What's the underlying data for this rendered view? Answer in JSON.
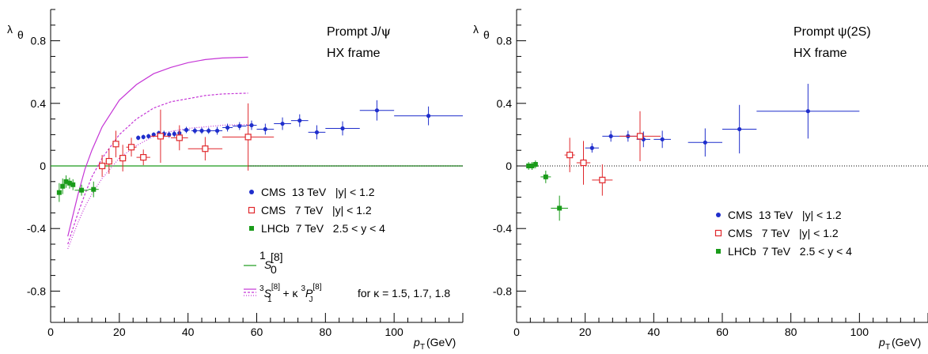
{
  "chart_data": [
    {
      "type": "scatter",
      "title_line1": "Prompt J/ψ",
      "title_line2": "HX frame",
      "ylabel": "λ",
      "ylabel_sub": "θ",
      "xlabel": "p",
      "xlabel_sub": "T",
      "xlabel_unit": "(GeV)",
      "xlim": [
        0,
        120
      ],
      "ylim": [
        -1.0,
        1.0
      ],
      "xticks": [
        "0",
        "20",
        "40",
        "60",
        "80",
        "100"
      ],
      "yticks": [
        "-0.8",
        "-0.4",
        "0",
        "0.4",
        "0.8"
      ],
      "series": [
        {
          "name": "CMS  13 TeV   |y| < 1.2",
          "color": "#1f2ecc",
          "marker": "filled-circle",
          "points": [
            {
              "x": 25.5,
              "y": 0.18,
              "xerr": 0.5,
              "yerr": 0.015
            },
            {
              "x": 27,
              "y": 0.185,
              "xerr": 0.5,
              "yerr": 0.015
            },
            {
              "x": 28.5,
              "y": 0.19,
              "xerr": 0.5,
              "yerr": 0.015
            },
            {
              "x": 30,
              "y": 0.2,
              "xerr": 0.5,
              "yerr": 0.015
            },
            {
              "x": 31.5,
              "y": 0.21,
              "xerr": 0.5,
              "yerr": 0.015
            },
            {
              "x": 33,
              "y": 0.205,
              "xerr": 0.5,
              "yerr": 0.02
            },
            {
              "x": 34.5,
              "y": 0.2,
              "xerr": 0.5,
              "yerr": 0.02
            },
            {
              "x": 36,
              "y": 0.205,
              "xerr": 0.5,
              "yerr": 0.02
            },
            {
              "x": 37.5,
              "y": 0.21,
              "xerr": 0.5,
              "yerr": 0.02
            },
            {
              "x": 39.5,
              "y": 0.23,
              "xerr": 1.0,
              "yerr": 0.02
            },
            {
              "x": 42,
              "y": 0.225,
              "xerr": 1.0,
              "yerr": 0.02
            },
            {
              "x": 44,
              "y": 0.225,
              "xerr": 1.0,
              "yerr": 0.02
            },
            {
              "x": 46,
              "y": 0.225,
              "xerr": 1.0,
              "yerr": 0.02
            },
            {
              "x": 48.5,
              "y": 0.225,
              "xerr": 1.5,
              "yerr": 0.025
            },
            {
              "x": 51.5,
              "y": 0.245,
              "xerr": 1.5,
              "yerr": 0.025
            },
            {
              "x": 55,
              "y": 0.255,
              "xerr": 2.0,
              "yerr": 0.025
            },
            {
              "x": 58.5,
              "y": 0.26,
              "xerr": 1.5,
              "yerr": 0.03
            },
            {
              "x": 62.5,
              "y": 0.235,
              "xerr": 2.5,
              "yerr": 0.035
            },
            {
              "x": 67.5,
              "y": 0.27,
              "xerr": 2.5,
              "yerr": 0.04
            },
            {
              "x": 72.5,
              "y": 0.29,
              "xerr": 2.5,
              "yerr": 0.04
            },
            {
              "x": 77.5,
              "y": 0.215,
              "xerr": 2.5,
              "yerr": 0.045
            },
            {
              "x": 85,
              "y": 0.24,
              "xerr": 5,
              "yerr": 0.045
            },
            {
              "x": 95,
              "y": 0.355,
              "xerr": 5,
              "yerr": 0.065
            },
            {
              "x": 110,
              "y": 0.32,
              "xerr": 10,
              "yerr": 0.06
            }
          ]
        },
        {
          "name": "CMS   7 TeV   |y| < 1.2",
          "color": "#e0272b",
          "marker": "open-square",
          "points": [
            {
              "x": 15,
              "y": 0.0,
              "xerr": 1.0,
              "yerr": 0.07
            },
            {
              "x": 17,
              "y": 0.03,
              "xerr": 1.0,
              "yerr": 0.08
            },
            {
              "x": 19,
              "y": 0.14,
              "xerr": 1.0,
              "yerr": 0.085
            },
            {
              "x": 21,
              "y": 0.05,
              "xerr": 1.0,
              "yerr": 0.085
            },
            {
              "x": 23.5,
              "y": 0.12,
              "xerr": 1.5,
              "yerr": 0.06
            },
            {
              "x": 27,
              "y": 0.055,
              "xerr": 2.0,
              "yerr": 0.05
            },
            {
              "x": 32,
              "y": 0.19,
              "xerr": 3.0,
              "yerr": 0.17
            },
            {
              "x": 37.5,
              "y": 0.18,
              "xerr": 2.5,
              "yerr": 0.08
            },
            {
              "x": 45,
              "y": 0.11,
              "xerr": 5,
              "yerr": 0.075
            },
            {
              "x": 57.5,
              "y": 0.185,
              "xerr": 7.5,
              "yerr": 0.215
            }
          ]
        },
        {
          "name": "LHCb  7 TeV   2.5 < y < 4",
          "color": "#1a9b1a",
          "marker": "filled-square",
          "points": [
            {
              "x": 2.5,
              "y": -0.17,
              "xerr": 0.5,
              "yerr": 0.06
            },
            {
              "x": 3.5,
              "y": -0.13,
              "xerr": 0.5,
              "yerr": 0.05
            },
            {
              "x": 4.5,
              "y": -0.1,
              "xerr": 0.5,
              "yerr": 0.04
            },
            {
              "x": 5.5,
              "y": -0.11,
              "xerr": 0.5,
              "yerr": 0.035
            },
            {
              "x": 6.5,
              "y": -0.12,
              "xerr": 0.5,
              "yerr": 0.035
            },
            {
              "x": 9,
              "y": -0.155,
              "xerr": 2.0,
              "yerr": 0.035
            },
            {
              "x": 12.5,
              "y": -0.15,
              "xerr": 1.5,
              "yerr": 0.05
            }
          ]
        }
      ],
      "curves_legend": [
        {
          "label_main": "S",
          "label_sup": "1",
          "label_bracket": "[8]",
          "label_sub": "0",
          "color": "#1a9b1a"
        },
        {
          "label": "for κ = 1.5, 1.7, 1.8",
          "color": "#c535d6"
        }
      ],
      "curves": [
        {
          "name": "1S0",
          "color": "#1a9b1a",
          "style": "solid",
          "points": [
            [
              0,
              0.0
            ],
            [
              120,
              0.0
            ]
          ]
        },
        {
          "name": "k1.5",
          "color": "#c535d6",
          "style": "solid",
          "points": [
            [
              5,
              -0.45
            ],
            [
              8,
              -0.18
            ],
            [
              10,
              -0.02
            ],
            [
              12,
              0.1
            ],
            [
              15,
              0.25
            ],
            [
              20,
              0.42
            ],
            [
              25,
              0.52
            ],
            [
              30,
              0.59
            ],
            [
              35,
              0.63
            ],
            [
              40,
              0.66
            ],
            [
              45,
              0.68
            ],
            [
              50,
              0.69
            ],
            [
              57.5,
              0.695
            ]
          ]
        },
        {
          "name": "k1.7",
          "color": "#c535d6",
          "style": "dashed",
          "points": [
            [
              5,
              -0.5
            ],
            [
              8,
              -0.3
            ],
            [
              10,
              -0.18
            ],
            [
              12,
              -0.07
            ],
            [
              15,
              0.05
            ],
            [
              20,
              0.2
            ],
            [
              25,
              0.3
            ],
            [
              30,
              0.37
            ],
            [
              35,
              0.41
            ],
            [
              40,
              0.43
            ],
            [
              45,
              0.45
            ],
            [
              50,
              0.46
            ],
            [
              57.5,
              0.465
            ]
          ]
        },
        {
          "name": "k1.8",
          "color": "#c535d6",
          "style": "dotted",
          "points": [
            [
              5,
              -0.53
            ],
            [
              8,
              -0.36
            ],
            [
              10,
              -0.26
            ],
            [
              12,
              -0.18
            ],
            [
              15,
              -0.08
            ],
            [
              20,
              0.05
            ],
            [
              25,
              0.13
            ],
            [
              30,
              0.19
            ],
            [
              35,
              0.22
            ],
            [
              40,
              0.24
            ],
            [
              45,
              0.25
            ],
            [
              50,
              0.26
            ],
            [
              57.5,
              0.265
            ]
          ]
        }
      ]
    },
    {
      "type": "scatter",
      "title_line1": "Prompt ψ(2S)",
      "title_line2": "HX frame",
      "ylabel": "λ",
      "ylabel_sub": "θ",
      "xlabel": "p",
      "xlabel_sub": "T",
      "xlabel_unit": "(GeV)",
      "xlim": [
        0,
        120
      ],
      "ylim": [
        -1.0,
        1.0
      ],
      "xticks": [
        "0",
        "20",
        "40",
        "60",
        "80",
        "100"
      ],
      "yticks": [
        "-0.8",
        "-0.4",
        "0",
        "0.4",
        "0.8"
      ],
      "series": [
        {
          "name": "CMS  13 TeV   |y| < 1.2",
          "color": "#1f2ecc",
          "marker": "filled-circle",
          "points": [
            {
              "x": 22,
              "y": 0.115,
              "xerr": 2.0,
              "yerr": 0.03
            },
            {
              "x": 27.5,
              "y": 0.19,
              "xerr": 2.5,
              "yerr": 0.035
            },
            {
              "x": 32.5,
              "y": 0.19,
              "xerr": 2.5,
              "yerr": 0.035
            },
            {
              "x": 37,
              "y": 0.17,
              "xerr": 2.0,
              "yerr": 0.05
            },
            {
              "x": 42.5,
              "y": 0.17,
              "xerr": 2.5,
              "yerr": 0.055
            },
            {
              "x": 55,
              "y": 0.15,
              "xerr": 5,
              "yerr": 0.09
            },
            {
              "x": 65,
              "y": 0.235,
              "xerr": 5,
              "yerr": 0.155
            },
            {
              "x": 85,
              "y": 0.35,
              "xerr": 15,
              "yerr": 0.175
            }
          ]
        },
        {
          "name": "CMS   7 TeV   |y| < 1.2",
          "color": "#e0272b",
          "marker": "open-square",
          "points": [
            {
              "x": 15.5,
              "y": 0.07,
              "xerr": 1.5,
              "yerr": 0.11
            },
            {
              "x": 19.5,
              "y": 0.02,
              "xerr": 2.0,
              "yerr": 0.14
            },
            {
              "x": 25,
              "y": -0.09,
              "xerr": 3.0,
              "yerr": 0.1
            },
            {
              "x": 36,
              "y": 0.19,
              "xerr": 6.0,
              "yerr": 0.16
            }
          ]
        },
        {
          "name": "LHCb  7 TeV   2.5 < y < 4",
          "color": "#1a9b1a",
          "marker": "filled-square",
          "points": [
            {
              "x": 3.5,
              "y": 0.0,
              "xerr": 0.5,
              "yerr": 0.025
            },
            {
              "x": 4.5,
              "y": 0.0,
              "xerr": 0.5,
              "yerr": 0.025
            },
            {
              "x": 5.5,
              "y": 0.01,
              "xerr": 0.5,
              "yerr": 0.025
            },
            {
              "x": 8.5,
              "y": -0.07,
              "xerr": 1.5,
              "yerr": 0.04
            },
            {
              "x": 12.5,
              "y": -0.27,
              "xerr": 2.5,
              "yerr": 0.08
            }
          ]
        }
      ],
      "curves": []
    }
  ]
}
